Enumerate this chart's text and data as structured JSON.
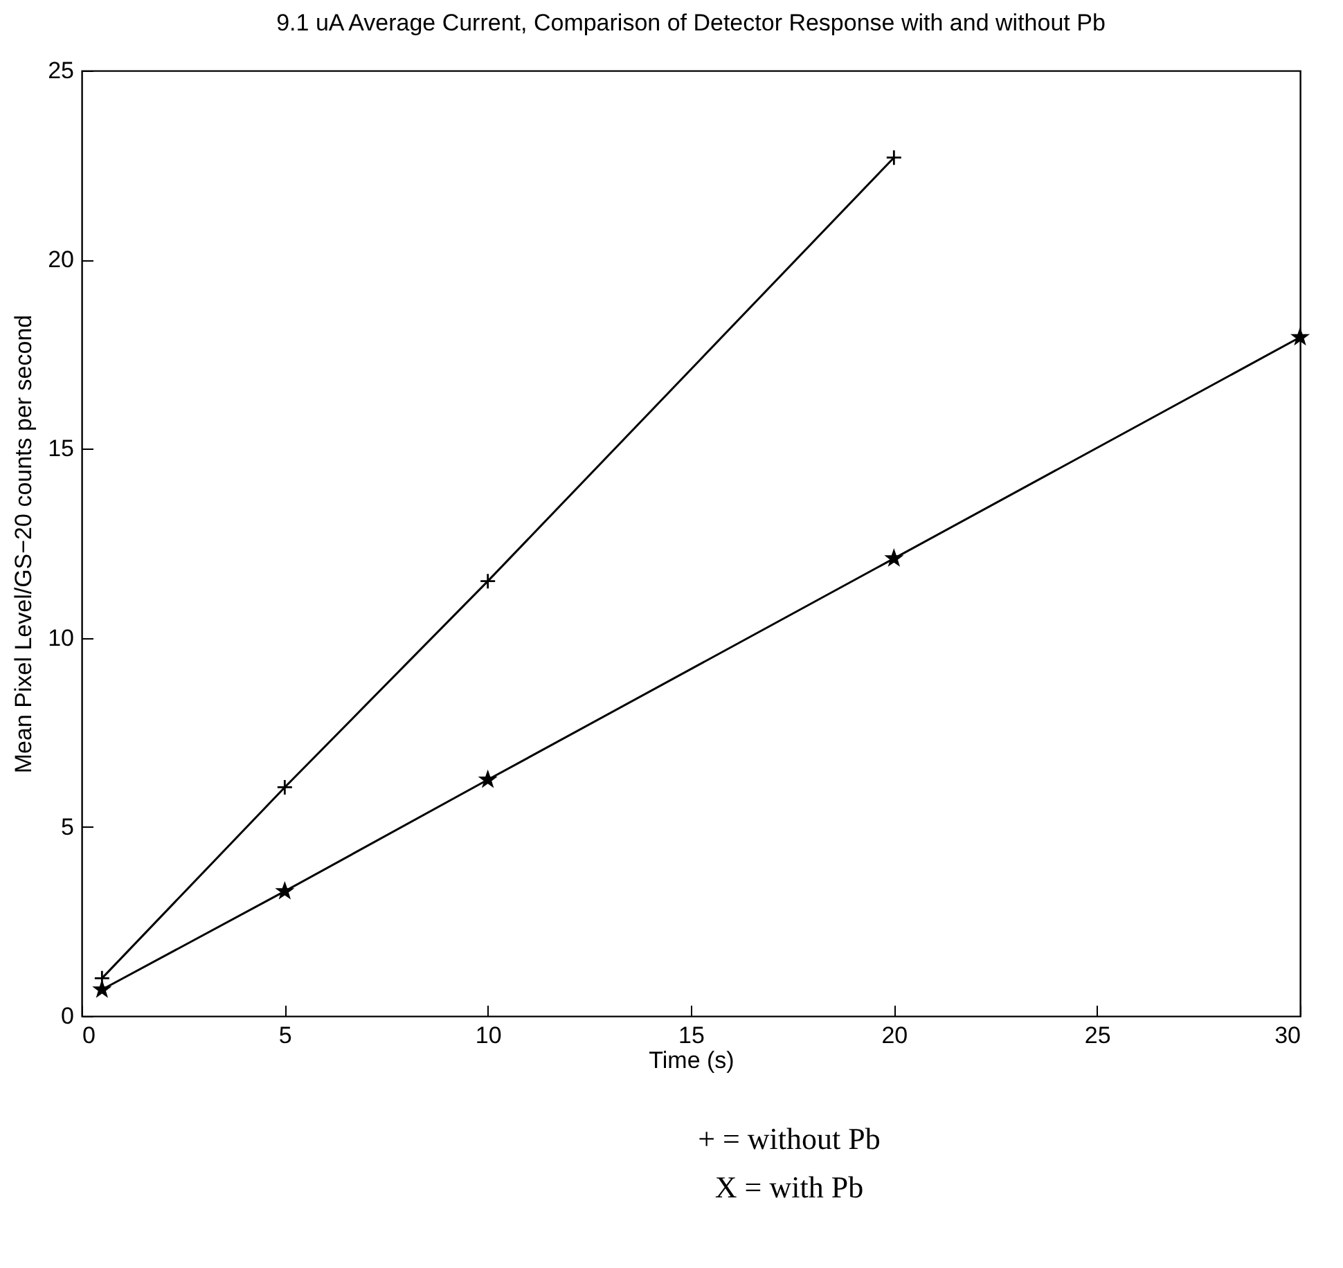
{
  "chart_data": {
    "type": "line",
    "title": "9.1 uA Average Current, Comparison of Detector Response with and without Pb",
    "xlabel": "Time (s)",
    "ylabel": "Mean Pixel Level/GS−20 counts per second",
    "xlim": [
      0,
      30
    ],
    "xticks": [
      0,
      5,
      10,
      15,
      20,
      25,
      30
    ],
    "ylim": [
      0,
      25
    ],
    "yticks": [
      0,
      5,
      10,
      15,
      20,
      25
    ],
    "grid": false,
    "line_style": "solid",
    "series": [
      {
        "color": "#000000",
        "marker": "cross",
        "x": [
          0.5,
          5,
          10,
          20
        ],
        "values": [
          1.0,
          6.05,
          11.5,
          22.7
        ]
      },
      {
        "color": "#000000",
        "marker": "star",
        "x": [
          0.5,
          5,
          10,
          20,
          30
        ],
        "values": [
          0.7,
          3.3,
          6.25,
          12.1,
          17.95
        ]
      }
    ],
    "annotations": [
      "+ = without Pb",
      "X = with Pb"
    ]
  }
}
